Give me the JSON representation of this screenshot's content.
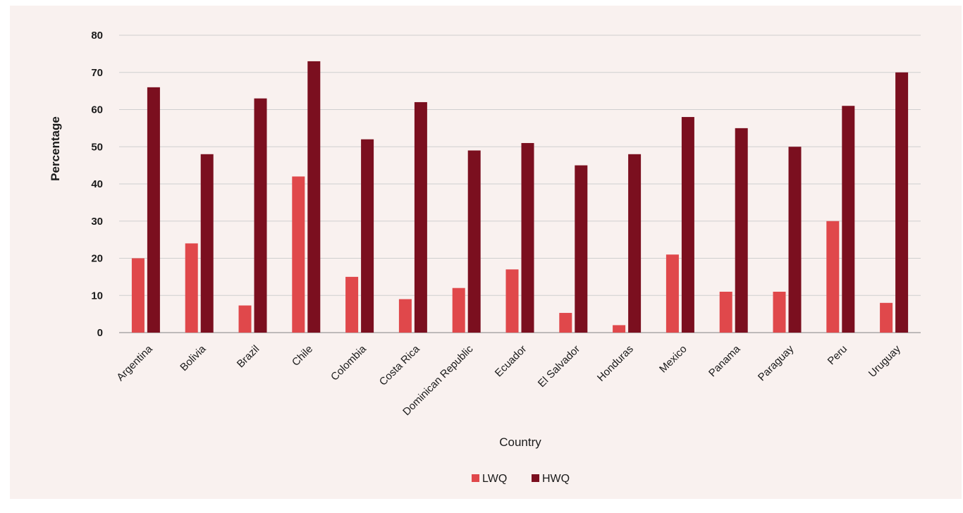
{
  "chart_data": {
    "type": "bar",
    "categories": [
      "Argentina",
      "Bolivia",
      "Brazil",
      "Chile",
      "Colombia",
      "Costa Rica",
      "Dominican Republic",
      "Ecuador",
      "El Salvador",
      "Honduras",
      "Mexico",
      "Panama",
      "Paraguay",
      "Peru",
      "Uruguay"
    ],
    "series": [
      {
        "name": "LWQ",
        "color": "#e0484b",
        "values": [
          20,
          24,
          7.3,
          42,
          15,
          9,
          12,
          17,
          5.3,
          2,
          21,
          11,
          11,
          30,
          8
        ]
      },
      {
        "name": "HWQ",
        "color": "#7b0f1f",
        "values": [
          66,
          48,
          63,
          73,
          52,
          62,
          49,
          51,
          45,
          48,
          58,
          55,
          50,
          61,
          70
        ]
      }
    ],
    "title": "",
    "xlabel": "Country",
    "ylabel": "Percentage",
    "ylim": [
      0,
      80
    ],
    "yticks": [
      "0",
      "10",
      "20",
      "30",
      "40",
      "50",
      "60",
      "70",
      "80"
    ],
    "grid": true,
    "legend_position": "bottom"
  }
}
